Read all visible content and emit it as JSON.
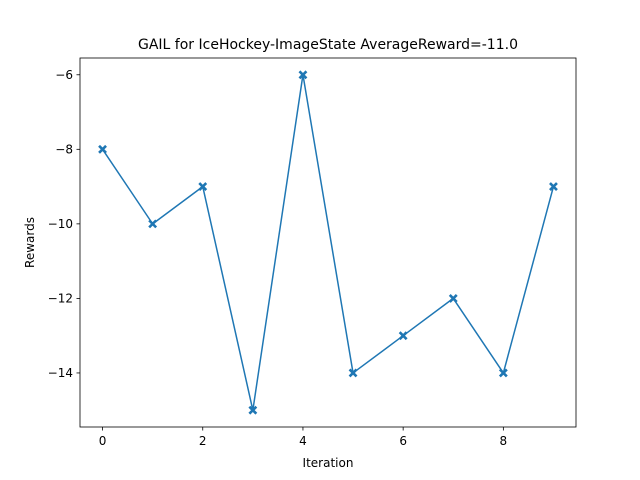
{
  "chart_data": {
    "type": "line",
    "title": "GAIL for IceHockey-ImageState AverageReward=-11.0",
    "xlabel": "Iteration",
    "ylabel": "Rewards",
    "x": [
      0,
      1,
      2,
      3,
      4,
      5,
      6,
      7,
      8,
      9
    ],
    "series": [
      {
        "values": [
          -8,
          -10,
          -9,
          -15,
          -6,
          -14,
          -13,
          -12,
          -14,
          -9
        ],
        "color": "#1f77b4",
        "marker": "x-filled"
      }
    ],
    "xlim": [
      -0.45,
      9.45
    ],
    "ylim": [
      -15.45,
      -5.55
    ],
    "xticks": [
      0,
      2,
      4,
      6,
      8
    ],
    "yticks": [
      -14,
      -12,
      -10,
      -8,
      -6
    ],
    "xtick_labels": [
      "0",
      "2",
      "4",
      "6",
      "8"
    ],
    "ytick_labels": [
      "−14",
      "−12",
      "−10",
      "−8",
      "−6"
    ],
    "grid": false,
    "legend": "none"
  }
}
